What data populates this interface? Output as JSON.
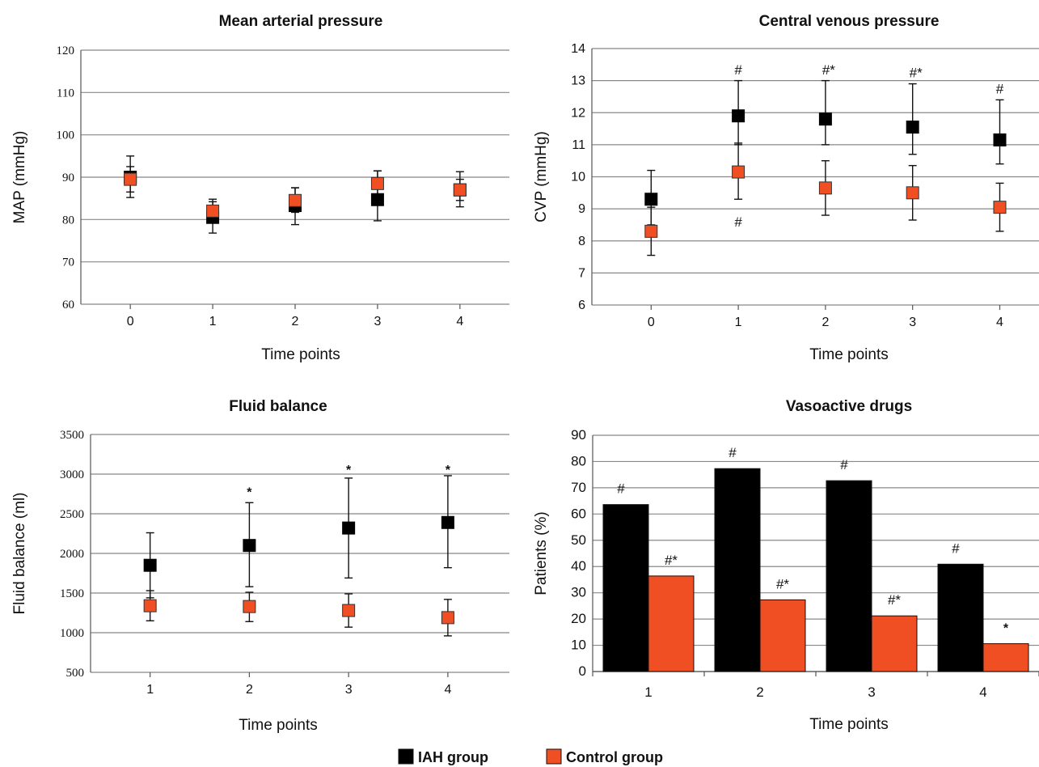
{
  "legend": {
    "items": [
      {
        "label": "IAH group",
        "color": "#000000"
      },
      {
        "label": "Control group",
        "color": "#f04e23"
      }
    ]
  },
  "colors": {
    "iah": "#000000",
    "control": "#f04e23",
    "grid": "#888888"
  },
  "chart_data": [
    {
      "id": "map",
      "type": "scatter",
      "title": "Mean arterial pressure",
      "xlabel": "Time points",
      "ylabel": "MAP (mmHg)",
      "x": [
        0,
        1,
        2,
        3,
        4
      ],
      "ylim": [
        60,
        120
      ],
      "yticks": [
        60,
        70,
        80,
        90,
        100,
        110,
        120
      ],
      "series": [
        {
          "name": "IAH group",
          "values": [
            90,
            80.5,
            83.3,
            84.7,
            87
          ],
          "err_low": [
            85.2,
            76.8,
            78.8,
            79.7,
            83
          ],
          "err_high": [
            95,
            84.8,
            87.5,
            91.5,
            91.3
          ]
        },
        {
          "name": "Control group",
          "values": [
            89.5,
            82,
            84.5,
            88.5,
            87
          ],
          "err_low": [
            86.5,
            79.8,
            81.7,
            84.3,
            84.5
          ],
          "err_high": [
            92.5,
            84.2,
            87.5,
            91.5,
            89.5
          ]
        }
      ],
      "annotations": []
    },
    {
      "id": "cvp",
      "type": "scatter",
      "title": "Central venous pressure",
      "xlabel": "Time points",
      "ylabel": "CVP (mmHg)",
      "x": [
        0,
        1,
        2,
        3,
        4
      ],
      "ylim": [
        6,
        14
      ],
      "yticks": [
        6,
        7,
        8,
        9,
        10,
        11,
        12,
        13,
        14
      ],
      "series": [
        {
          "name": "IAH group",
          "values": [
            9.3,
            11.9,
            11.8,
            11.55,
            11.15
          ],
          "err_low": [
            8.5,
            11.0,
            11.0,
            10.7,
            10.4
          ],
          "err_high": [
            10.2,
            13.0,
            13.0,
            12.9,
            12.4
          ]
        },
        {
          "name": "Control group",
          "values": [
            8.3,
            10.15,
            9.65,
            9.5,
            9.05
          ],
          "err_low": [
            7.55,
            9.3,
            8.8,
            8.65,
            8.3
          ],
          "err_high": [
            9.05,
            11.05,
            10.5,
            10.35,
            9.8
          ]
        }
      ],
      "annotations": [
        {
          "text": "#",
          "x": 1,
          "y": 13.35
        },
        {
          "text": "#*",
          "x": 2,
          "y": 13.35
        },
        {
          "text": "#*",
          "x": 3,
          "y": 13.25
        },
        {
          "text": "#",
          "x": 4,
          "y": 12.75
        },
        {
          "text": "#",
          "x": 1,
          "y": 8.6
        }
      ]
    },
    {
      "id": "fluid",
      "type": "scatter",
      "title": "Fluid balance",
      "xlabel": "Time points",
      "ylabel": "Fluid balance  (ml)",
      "x": [
        1,
        2,
        3,
        4
      ],
      "ylim": [
        500,
        3500
      ],
      "yticks": [
        500,
        1000,
        1500,
        2000,
        2500,
        3000,
        3500
      ],
      "series": [
        {
          "name": "IAH group",
          "values": [
            1850,
            2100,
            2320,
            2390
          ],
          "err_low": [
            1440,
            1580,
            1690,
            1820
          ],
          "err_high": [
            2260,
            2640,
            2950,
            2980
          ]
        },
        {
          "name": "Control group",
          "values": [
            1340,
            1330,
            1280,
            1190
          ],
          "err_low": [
            1150,
            1140,
            1070,
            960
          ],
          "err_high": [
            1530,
            1510,
            1490,
            1420
          ]
        }
      ],
      "annotations": [
        {
          "text": "*",
          "x": 2,
          "y": 2780
        },
        {
          "text": "*",
          "x": 3,
          "y": 3060
        },
        {
          "text": "*",
          "x": 4,
          "y": 3060
        }
      ]
    },
    {
      "id": "vaso",
      "type": "bar",
      "title": "Vasoactive drugs",
      "xlabel": "Time points",
      "ylabel": "Patients (%)",
      "categories": [
        "1",
        "2",
        "3",
        "4"
      ],
      "ylim": [
        0,
        90
      ],
      "yticks": [
        0,
        10,
        20,
        30,
        40,
        50,
        60,
        70,
        80,
        90
      ],
      "series": [
        {
          "name": "IAH group",
          "values": [
            63.6,
            77.3,
            72.7,
            40.9
          ]
        },
        {
          "name": "Control group",
          "values": [
            36.4,
            27.3,
            21.2,
            10.6
          ]
        }
      ],
      "annotations": [
        {
          "text": "#",
          "cat": 0,
          "series": 0
        },
        {
          "text": "#*",
          "cat": 0,
          "series": 1
        },
        {
          "text": "#",
          "cat": 1,
          "series": 0
        },
        {
          "text": "#*",
          "cat": 1,
          "series": 1
        },
        {
          "text": "#",
          "cat": 2,
          "series": 0
        },
        {
          "text": "#*",
          "cat": 2,
          "series": 1
        },
        {
          "text": "#",
          "cat": 3,
          "series": 0
        },
        {
          "text": "*",
          "cat": 3,
          "series": 1
        }
      ]
    }
  ]
}
